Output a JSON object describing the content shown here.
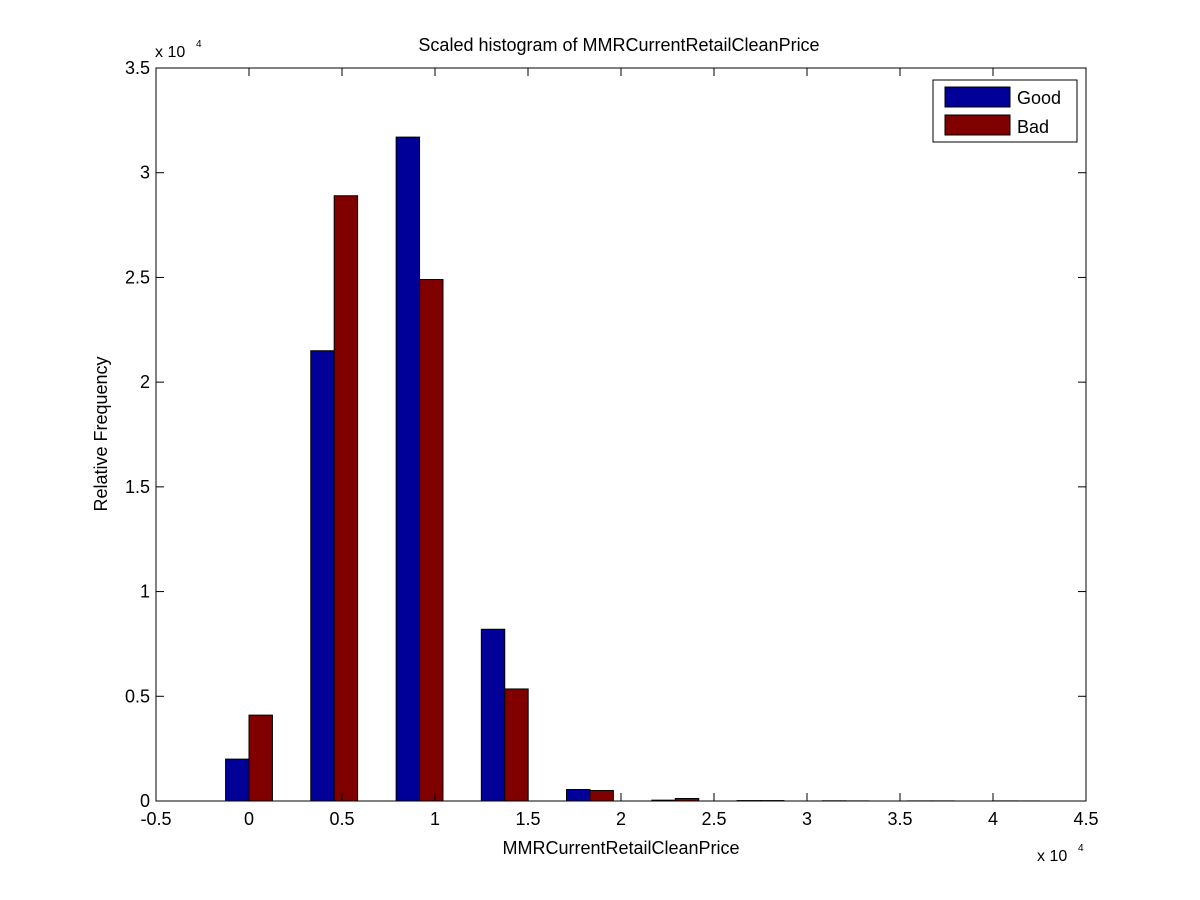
{
  "chart_data": {
    "type": "bar",
    "title": "Scaled histogram of MMRCurrentRetailCleanPrice",
    "xlabel": "MMRCurrentRetailCleanPrice",
    "ylabel": "Relative Frequency",
    "x_exponent_label": "x 10",
    "y_exponent_label": "x 10",
    "exponent": "4",
    "xlim": [
      -0.5,
      4.5
    ],
    "ylim": [
      0,
      3.5
    ],
    "x_ticks": [
      "-0.5",
      "0",
      "0.5",
      "1",
      "1.5",
      "2",
      "2.5",
      "3",
      "3.5",
      "4",
      "4.5"
    ],
    "y_ticks": [
      "0",
      "0.5",
      "1",
      "1.5",
      "2",
      "2.5",
      "3",
      "3.5"
    ],
    "bin_centers": [
      0.0,
      0.458,
      0.917,
      1.375,
      1.833,
      2.292,
      2.75,
      3.208,
      3.667,
      4.125
    ],
    "series": [
      {
        "name": "Good",
        "color": "#000099",
        "values": [
          0.2,
          2.15,
          3.17,
          0.82,
          0.055,
          0.004,
          0.002,
          0.001,
          0.0005,
          0.0005
        ]
      },
      {
        "name": "Bad",
        "color": "#800000",
        "values": [
          0.41,
          2.89,
          2.49,
          0.535,
          0.05,
          0.012,
          0.002,
          0.0005,
          0.0005,
          0.0003
        ]
      }
    ],
    "legend_position": "top-right",
    "grid": false
  }
}
